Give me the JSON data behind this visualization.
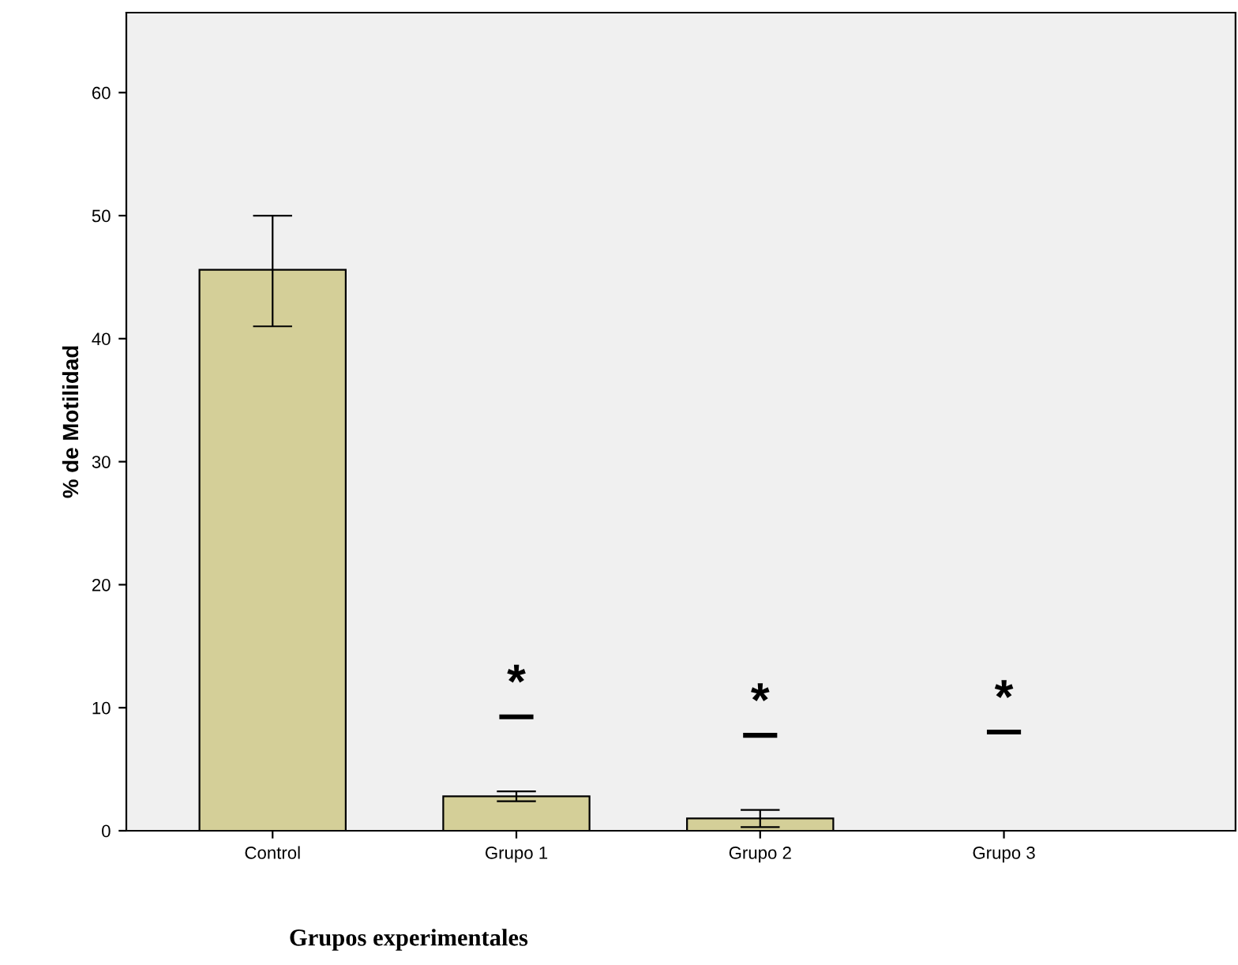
{
  "chart_data": {
    "type": "bar",
    "xlabel": "Grupos experimentales",
    "ylabel": "% de Motilidad",
    "categories": [
      "Control",
      "Grupo 1",
      "Grupo 2",
      "Grupo 3"
    ],
    "values": [
      45.6,
      2.8,
      1.0,
      0
    ],
    "errors": [
      [
        41.0,
        50.0
      ],
      [
        2.4,
        3.2
      ],
      [
        0.3,
        1.7
      ],
      null
    ],
    "color": "#d4cf98",
    "ylim": [
      0,
      66.5
    ],
    "yticks": [
      0,
      10,
      20,
      30,
      40,
      50,
      60
    ],
    "grid": false,
    "annotations": [
      "*",
      "*",
      "*"
    ]
  }
}
